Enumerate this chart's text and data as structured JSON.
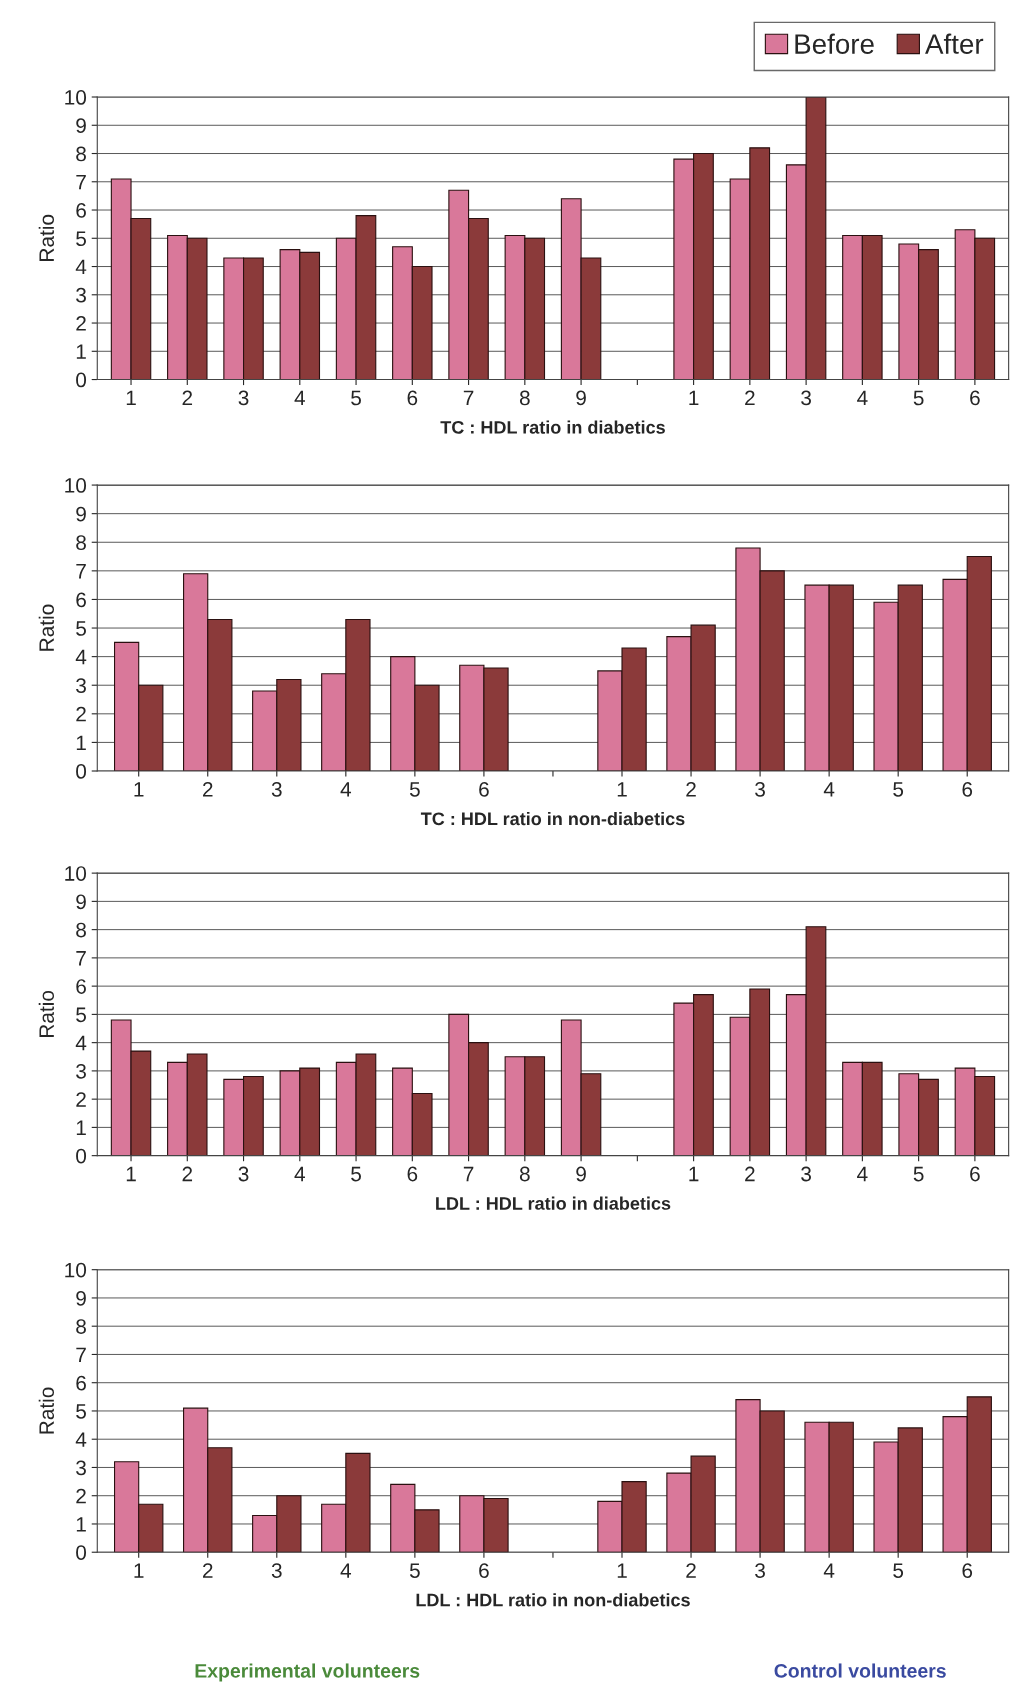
{
  "chart_data": [
    {
      "type": "bar",
      "xlabel": "TC : HDL ratio in diabetics",
      "ylabel": "Ratio",
      "categories": [
        "1",
        "2",
        "3",
        "4",
        "5",
        "6",
        "7",
        "8",
        "9",
        null,
        "1",
        "2",
        "3",
        "4",
        "5",
        "6"
      ],
      "ylim": [
        0,
        10
      ],
      "yticks": [
        0,
        1,
        2,
        3,
        4,
        5,
        6,
        7,
        8,
        9,
        10
      ],
      "grid": "y",
      "legend": "top right",
      "series": [
        {
          "name": "Before",
          "color": "#d9789a",
          "values": [
            7.1,
            5.1,
            4.3,
            4.6,
            5.0,
            4.7,
            6.7,
            5.1,
            6.4,
            null,
            7.8,
            7.1,
            7.6,
            5.1,
            4.8,
            5.3
          ]
        },
        {
          "name": "After",
          "color": "#8b3a3a",
          "values": [
            5.7,
            5.0,
            4.3,
            4.5,
            5.8,
            4.0,
            5.7,
            5.0,
            4.3,
            null,
            8.0,
            8.2,
            10.0,
            5.1,
            4.6,
            5.0
          ]
        }
      ]
    },
    {
      "type": "bar",
      "xlabel": "TC : HDL ratio in non-diabetics",
      "ylabel": "Ratio",
      "categories": [
        "1",
        "2",
        "3",
        "4",
        "5",
        "6",
        null,
        "1",
        "2",
        "3",
        "4",
        "5",
        "6"
      ],
      "ylim": [
        0,
        10
      ],
      "yticks": [
        0,
        1,
        2,
        3,
        4,
        5,
        6,
        7,
        8,
        9,
        10
      ],
      "grid": "y",
      "series": [
        {
          "color": "#d9789a",
          "values": [
            4.5,
            6.9,
            2.8,
            3.4,
            4.0,
            3.7,
            null,
            3.5,
            4.7,
            7.8,
            6.5,
            5.9,
            6.7
          ]
        },
        {
          "color": "#8b3a3a",
          "values": [
            3.0,
            5.3,
            3.2,
            5.3,
            3.0,
            3.6,
            null,
            4.3,
            5.1,
            7.0,
            6.5,
            6.5,
            7.5
          ]
        }
      ]
    },
    {
      "type": "bar",
      "xlabel": "LDL : HDL ratio in diabetics",
      "ylabel": "Ratio",
      "categories": [
        "1",
        "2",
        "3",
        "4",
        "5",
        "6",
        "7",
        "8",
        "9",
        null,
        "1",
        "2",
        "3",
        "4",
        "5",
        "6"
      ],
      "ylim": [
        0,
        10
      ],
      "yticks": [
        0,
        1,
        2,
        3,
        4,
        5,
        6,
        7,
        8,
        9,
        10
      ],
      "grid": "y",
      "series": [
        {
          "color": "#d9789a",
          "values": [
            4.8,
            3.3,
            2.7,
            3.0,
            3.3,
            3.1,
            5.0,
            3.5,
            4.8,
            null,
            5.4,
            4.9,
            5.7,
            3.3,
            2.9,
            3.1
          ]
        },
        {
          "color": "#8b3a3a",
          "values": [
            3.7,
            3.6,
            2.8,
            3.1,
            3.6,
            2.2,
            4.0,
            3.5,
            2.9,
            null,
            5.7,
            5.9,
            8.1,
            3.3,
            2.7,
            2.8
          ]
        }
      ]
    },
    {
      "type": "bar",
      "xlabel": "LDL : HDL ratio in non-diabetics",
      "ylabel": "Ratio",
      "categories": [
        "1",
        "2",
        "3",
        "4",
        "5",
        "6",
        null,
        "1",
        "2",
        "3",
        "4",
        "5",
        "6"
      ],
      "ylim": [
        0,
        10
      ],
      "yticks": [
        0,
        1,
        2,
        3,
        4,
        5,
        6,
        7,
        8,
        9,
        10
      ],
      "grid": "y",
      "annotations": [
        "Experimental volunteers",
        "Control volunteers"
      ],
      "series": [
        {
          "color": "#d9789a",
          "values": [
            3.2,
            5.1,
            1.3,
            1.7,
            2.4,
            2.0,
            null,
            1.8,
            2.8,
            5.4,
            4.6,
            3.9,
            4.8
          ]
        },
        {
          "color": "#8b3a3a",
          "values": [
            1.7,
            3.7,
            2.0,
            3.5,
            1.5,
            1.9,
            null,
            2.5,
            3.4,
            5.0,
            4.6,
            4.4,
            5.5
          ]
        }
      ]
    }
  ]
}
